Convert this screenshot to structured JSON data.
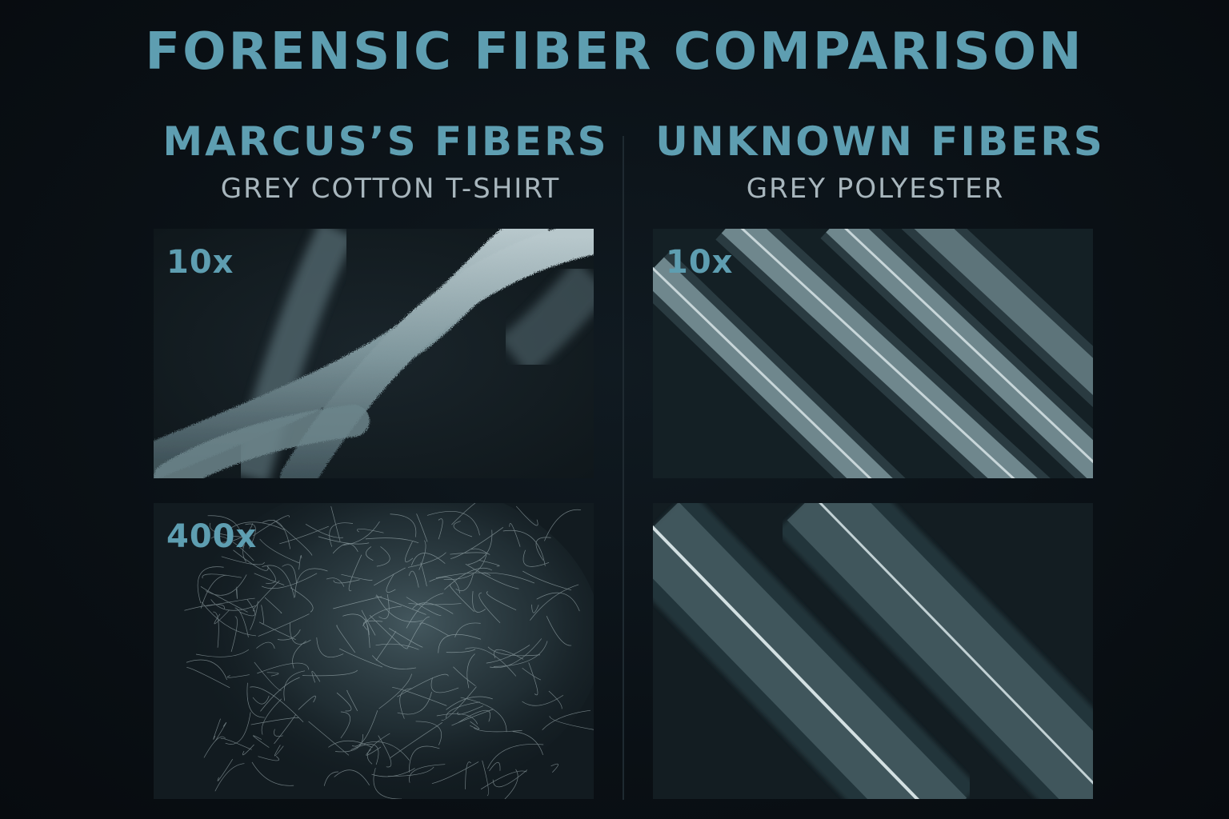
{
  "title": "FORENSIC FIBER COMPARISON",
  "columns": [
    {
      "heading": "MARCUS’S FIBERS",
      "subheading": "GREY COTTON T-SHIRT",
      "panels": [
        {
          "magnification": "10x"
        },
        {
          "magnification": "400x"
        }
      ]
    },
    {
      "heading": "UNKNOWN FIBERS",
      "subheading": "GREY POLYESTER",
      "panels": [
        {
          "magnification": "10x"
        },
        {
          "magnification": ""
        }
      ]
    }
  ],
  "colors": {
    "accent": "#5e9eb1",
    "subtext": "#a8b6bd",
    "background": "#0b1116",
    "panel": "#141e23",
    "fiber": "#7f989f"
  }
}
